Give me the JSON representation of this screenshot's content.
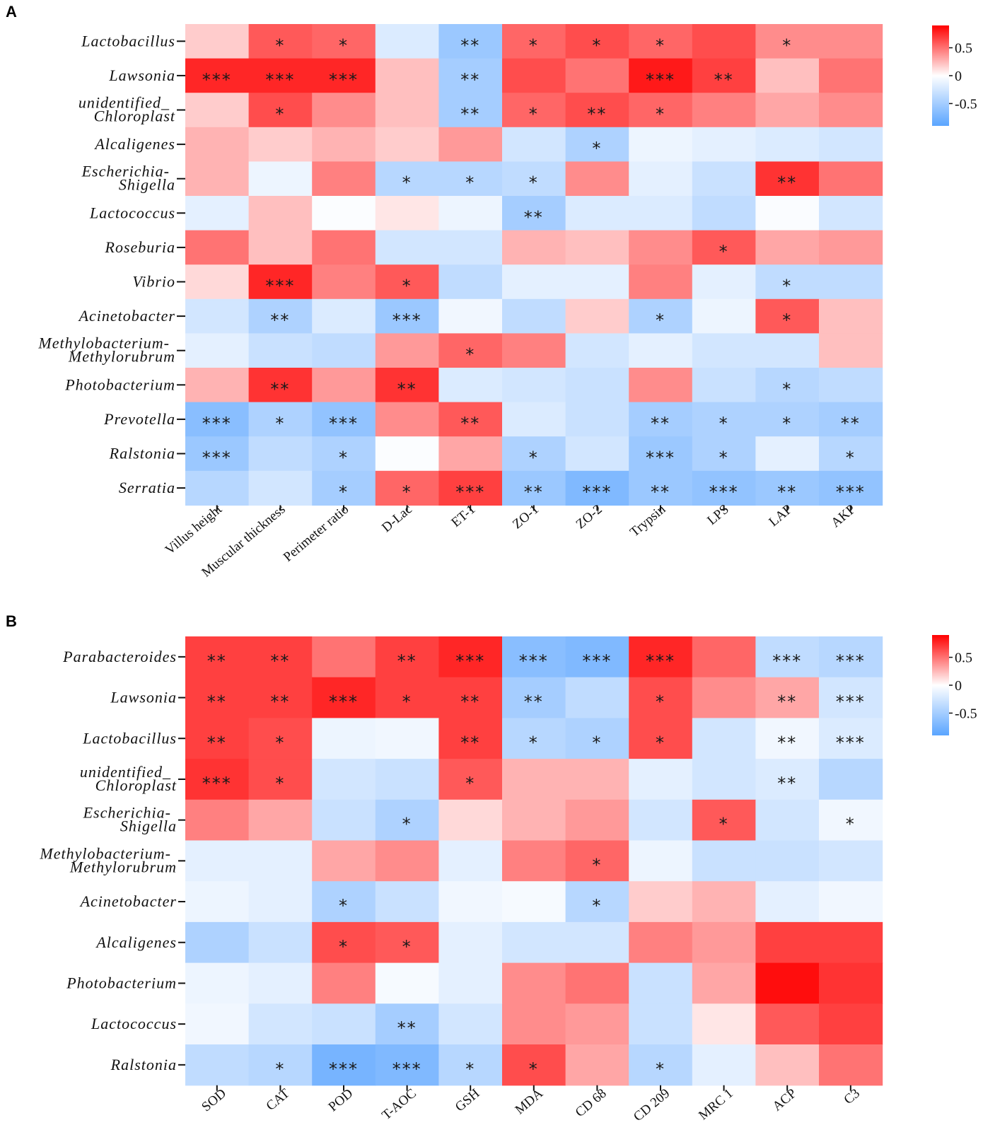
{
  "chart_data": [
    {
      "type": "heatmap",
      "panel": "A",
      "title": "",
      "colorbar": {
        "ticks": [
          "0.5",
          "0",
          "-0.5"
        ],
        "range": [
          -0.9,
          0.9
        ]
      },
      "rows": [
        "Lactobacillus",
        "Lawsonia",
        "unidentified_ Chloroplast",
        "Alcaligenes",
        "Escherichia- Shigella",
        "Lactococcus",
        "Roseburia",
        "Vibrio",
        "Acinetobacter",
        "Methylobacterium- Methylorubrum",
        "Photobacterium",
        "Prevotella",
        "Ralstonia",
        "Serratia"
      ],
      "columns": [
        "Villus height",
        "Muscular thickness",
        "Perimeter ratio",
        "D-Lac",
        "ET-1",
        "ZO-1",
        "ZO-2",
        "Trypsin",
        "LPS",
        "LAP",
        "AKP"
      ],
      "values": [
        [
          0.2,
          0.65,
          0.6,
          -0.2,
          -0.55,
          0.6,
          0.7,
          0.6,
          0.7,
          0.45,
          0.45
        ],
        [
          0.85,
          0.85,
          0.85,
          0.25,
          -0.5,
          0.7,
          0.55,
          0.9,
          0.75,
          0.25,
          0.55
        ],
        [
          0.2,
          0.7,
          0.45,
          0.25,
          -0.5,
          0.6,
          0.7,
          0.6,
          0.5,
          0.35,
          0.45
        ],
        [
          0.3,
          0.2,
          0.3,
          0.2,
          0.4,
          -0.25,
          -0.45,
          -0.1,
          -0.15,
          -0.2,
          -0.25
        ],
        [
          0.3,
          -0.1,
          0.5,
          -0.4,
          -0.4,
          -0.35,
          0.45,
          -0.15,
          -0.3,
          0.8,
          0.55
        ],
        [
          -0.15,
          0.25,
          -0.02,
          0.1,
          -0.1,
          -0.5,
          -0.2,
          -0.2,
          -0.35,
          -0.03,
          -0.25
        ],
        [
          0.55,
          0.25,
          0.55,
          -0.25,
          -0.25,
          0.3,
          0.25,
          0.45,
          0.65,
          0.35,
          0.4
        ],
        [
          0.15,
          0.85,
          0.5,
          0.65,
          -0.35,
          -0.15,
          -0.15,
          0.5,
          -0.15,
          -0.35,
          -0.35
        ],
        [
          -0.25,
          -0.45,
          -0.2,
          -0.55,
          -0.08,
          -0.35,
          0.2,
          -0.45,
          -0.1,
          0.65,
          0.25
        ],
        [
          -0.15,
          -0.3,
          -0.35,
          0.4,
          0.6,
          0.5,
          -0.25,
          -0.15,
          -0.25,
          -0.25,
          0.25
        ],
        [
          0.3,
          0.8,
          0.4,
          0.8,
          -0.2,
          -0.25,
          -0.3,
          0.45,
          -0.3,
          -0.4,
          -0.35
        ],
        [
          -0.65,
          -0.45,
          -0.6,
          0.45,
          0.65,
          -0.2,
          -0.3,
          -0.5,
          -0.45,
          -0.45,
          -0.5
        ],
        [
          -0.55,
          -0.35,
          -0.45,
          -0.02,
          0.35,
          -0.45,
          -0.25,
          -0.55,
          -0.45,
          -0.15,
          -0.4
        ],
        [
          -0.4,
          -0.25,
          -0.5,
          0.6,
          0.75,
          -0.55,
          -0.7,
          -0.55,
          -0.6,
          -0.55,
          -0.6
        ]
      ],
      "significance": [
        [
          "",
          "*",
          "*",
          "",
          "**",
          "*",
          "*",
          "*",
          "",
          "*",
          ""
        ],
        [
          "***",
          "***",
          "***",
          "",
          "**",
          "",
          "",
          "***",
          "**",
          "",
          ""
        ],
        [
          "",
          "*",
          "",
          "",
          "**",
          "*",
          "**",
          "*",
          "",
          "",
          ""
        ],
        [
          "",
          "",
          "",
          "",
          "",
          "",
          "*",
          "",
          "",
          "",
          ""
        ],
        [
          "",
          "",
          "",
          "*",
          "*",
          "*",
          "",
          "",
          "",
          "**",
          ""
        ],
        [
          "",
          "",
          "",
          "",
          "",
          "**",
          "",
          "",
          "",
          "",
          ""
        ],
        [
          "",
          "",
          "",
          "",
          "",
          "",
          "",
          "",
          "*",
          "",
          ""
        ],
        [
          "",
          "***",
          "",
          "*",
          "",
          "",
          "",
          "",
          "",
          "*",
          ""
        ],
        [
          "",
          "**",
          "",
          "***",
          "",
          "",
          "",
          "*",
          "",
          "*",
          ""
        ],
        [
          "",
          "",
          "",
          "",
          "*",
          "",
          "",
          "",
          "",
          "",
          ""
        ],
        [
          "",
          "**",
          "",
          "**",
          "",
          "",
          "",
          "",
          "",
          "*",
          ""
        ],
        [
          "***",
          "*",
          "***",
          "",
          "**",
          "",
          "",
          "**",
          "*",
          "*",
          "**"
        ],
        [
          "***",
          "",
          "*",
          "",
          "",
          "*",
          "",
          "***",
          "*",
          "",
          "*"
        ],
        [
          "",
          "",
          "*",
          "*",
          "***",
          "**",
          "***",
          "**",
          "***",
          "**",
          "***"
        ]
      ]
    },
    {
      "type": "heatmap",
      "panel": "B",
      "title": "",
      "colorbar": {
        "ticks": [
          "0.5",
          "0",
          "-0.5"
        ],
        "range": [
          -0.9,
          0.9
        ]
      },
      "rows": [
        "Parabacteroides",
        "Lawsonia",
        "Lactobacillus",
        "unidentified_ Chloroplast",
        "Escherichia- Shigella",
        "Methylobacterium- Methylorubrum",
        "Acinetobacter",
        "Alcaligenes",
        "Photobacterium",
        "Lactococcus",
        "Ralstonia"
      ],
      "columns": [
        "SOD",
        "CAT",
        "POD",
        "T-AOC",
        "GSH",
        "MDA",
        "CD 68",
        "CD 209",
        "MRC 1",
        "ACP",
        "C3"
      ],
      "values": [
        [
          0.75,
          0.75,
          0.55,
          0.75,
          0.85,
          -0.65,
          -0.7,
          0.85,
          0.6,
          -0.35,
          -0.4
        ],
        [
          0.75,
          0.75,
          0.85,
          0.75,
          0.75,
          -0.5,
          -0.35,
          0.7,
          0.45,
          0.35,
          -0.25
        ],
        [
          0.75,
          0.7,
          -0.1,
          -0.08,
          0.75,
          -0.4,
          -0.45,
          0.7,
          -0.25,
          -0.08,
          -0.2
        ],
        [
          0.8,
          0.7,
          -0.25,
          -0.3,
          0.65,
          0.3,
          0.3,
          -0.15,
          -0.25,
          -0.2,
          -0.4
        ],
        [
          0.5,
          0.35,
          -0.3,
          -0.45,
          0.15,
          0.3,
          0.4,
          -0.25,
          0.65,
          -0.25,
          -0.08
        ],
        [
          -0.15,
          -0.15,
          0.35,
          0.45,
          -0.15,
          0.5,
          0.6,
          -0.1,
          -0.3,
          -0.3,
          -0.25
        ],
        [
          -0.1,
          -0.15,
          -0.45,
          -0.3,
          -0.08,
          -0.05,
          -0.4,
          0.2,
          0.3,
          -0.15,
          -0.08
        ],
        [
          -0.45,
          -0.3,
          0.7,
          0.65,
          -0.15,
          -0.25,
          -0.25,
          0.5,
          0.4,
          0.75,
          0.75
        ],
        [
          -0.1,
          -0.15,
          0.5,
          -0.05,
          -0.15,
          0.45,
          0.55,
          -0.3,
          0.35,
          0.95,
          0.8
        ],
        [
          -0.08,
          -0.25,
          -0.3,
          -0.5,
          -0.25,
          0.45,
          0.4,
          -0.3,
          0.1,
          0.65,
          0.75
        ],
        [
          -0.35,
          -0.4,
          -0.75,
          -0.7,
          -0.4,
          0.7,
          0.35,
          -0.4,
          -0.15,
          0.25,
          0.55
        ]
      ],
      "significance": [
        [
          "**",
          "**",
          "",
          "**",
          "***",
          "***",
          "***",
          "***",
          "",
          "***",
          "***"
        ],
        [
          "**",
          "**",
          "***",
          "*",
          "**",
          "**",
          "",
          "*",
          "",
          "**",
          "***"
        ],
        [
          "**",
          "*",
          "",
          "",
          "**",
          "*",
          "*",
          "*",
          "",
          "**",
          "***"
        ],
        [
          "***",
          "*",
          "",
          "",
          "*",
          "",
          "",
          "",
          "",
          "**",
          ""
        ],
        [
          "",
          "",
          "",
          "*",
          "",
          "",
          "",
          "",
          "*",
          "",
          "*"
        ],
        [
          "",
          "",
          "",
          "",
          "",
          "",
          "*",
          "",
          "",
          "",
          ""
        ],
        [
          "",
          "",
          "*",
          "",
          "",
          "",
          "*",
          "",
          "",
          "",
          ""
        ],
        [
          "",
          "",
          "*",
          "*",
          "",
          "",
          "",
          "",
          "",
          "",
          ""
        ],
        [
          "",
          "",
          "",
          "",
          "",
          "",
          "",
          "",
          "",
          "",
          ""
        ],
        [
          "",
          "",
          "",
          "**",
          "",
          "",
          "",
          "",
          "",
          "",
          ""
        ],
        [
          "",
          "*",
          "***",
          "***",
          "*",
          "*",
          "",
          "*",
          "",
          "",
          ""
        ]
      ]
    }
  ]
}
